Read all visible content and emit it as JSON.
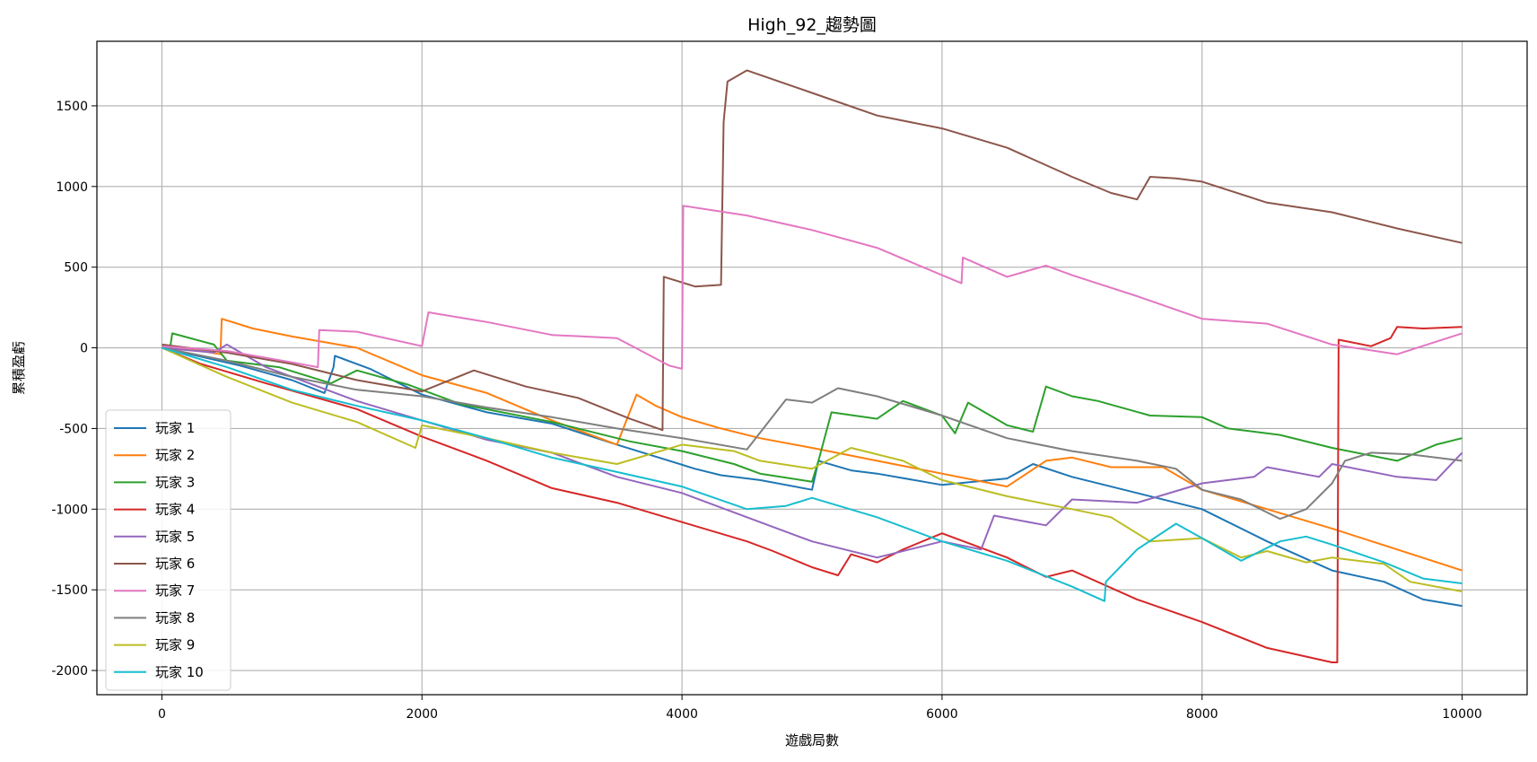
{
  "chart_data": {
    "type": "line",
    "title": "High_92_趨勢圖",
    "xlabel": "遊戲局數",
    "ylabel": "累積盈虧",
    "xlim": [
      -500,
      10500
    ],
    "ylim": [
      -2150,
      1900
    ],
    "xticks": [
      0,
      2000,
      4000,
      6000,
      8000,
      10000
    ],
    "yticks": [
      -2000,
      -1500,
      -1000,
      -500,
      0,
      500,
      1000,
      1500
    ],
    "grid": true,
    "legend_position": "lower-left",
    "series": [
      {
        "name": "玩家 1",
        "color": "#1f77b4",
        "points": [
          [
            0,
            0
          ],
          [
            600,
            -110
          ],
          [
            1000,
            -200
          ],
          [
            1250,
            -280
          ],
          [
            1320,
            -120
          ],
          [
            1330,
            -50
          ],
          [
            1600,
            -130
          ],
          [
            2000,
            -290
          ],
          [
            2500,
            -400
          ],
          [
            3000,
            -470
          ],
          [
            3500,
            -600
          ],
          [
            4100,
            -750
          ],
          [
            4300,
            -790
          ],
          [
            4600,
            -820
          ],
          [
            5000,
            -880
          ],
          [
            5050,
            -700
          ],
          [
            5300,
            -760
          ],
          [
            5500,
            -780
          ],
          [
            6000,
            -850
          ],
          [
            6500,
            -810
          ],
          [
            6700,
            -720
          ],
          [
            7000,
            -800
          ],
          [
            7500,
            -900
          ],
          [
            8000,
            -1000
          ],
          [
            8500,
            -1200
          ],
          [
            9000,
            -1380
          ],
          [
            9400,
            -1450
          ],
          [
            9700,
            -1560
          ],
          [
            10000,
            -1600
          ]
        ]
      },
      {
        "name": "玩家 2",
        "color": "#ff7f0e",
        "points": [
          [
            0,
            20
          ],
          [
            450,
            -40
          ],
          [
            460,
            180
          ],
          [
            700,
            120
          ],
          [
            1000,
            70
          ],
          [
            1500,
            0
          ],
          [
            2000,
            -170
          ],
          [
            2500,
            -280
          ],
          [
            3000,
            -450
          ],
          [
            3500,
            -600
          ],
          [
            3650,
            -290
          ],
          [
            3800,
            -360
          ],
          [
            4000,
            -430
          ],
          [
            4300,
            -500
          ],
          [
            4600,
            -560
          ],
          [
            5000,
            -620
          ],
          [
            5500,
            -700
          ],
          [
            6000,
            -780
          ],
          [
            6500,
            -860
          ],
          [
            6800,
            -700
          ],
          [
            7000,
            -680
          ],
          [
            7300,
            -740
          ],
          [
            7700,
            -740
          ],
          [
            8000,
            -880
          ],
          [
            8500,
            -1000
          ],
          [
            9000,
            -1120
          ],
          [
            9500,
            -1250
          ],
          [
            10000,
            -1380
          ]
        ]
      },
      {
        "name": "玩家 3",
        "color": "#2ca02c",
        "points": [
          [
            0,
            10
          ],
          [
            60,
            -20
          ],
          [
            80,
            90
          ],
          [
            400,
            20
          ],
          [
            500,
            -80
          ],
          [
            900,
            -120
          ],
          [
            1300,
            -220
          ],
          [
            1500,
            -140
          ],
          [
            1900,
            -230
          ],
          [
            2300,
            -350
          ],
          [
            3000,
            -460
          ],
          [
            3600,
            -580
          ],
          [
            4000,
            -640
          ],
          [
            4400,
            -720
          ],
          [
            4600,
            -780
          ],
          [
            5000,
            -830
          ],
          [
            5050,
            -700
          ],
          [
            5150,
            -400
          ],
          [
            5500,
            -440
          ],
          [
            5700,
            -330
          ],
          [
            6000,
            -420
          ],
          [
            6100,
            -530
          ],
          [
            6200,
            -340
          ],
          [
            6500,
            -480
          ],
          [
            6700,
            -520
          ],
          [
            6800,
            -240
          ],
          [
            7000,
            -300
          ],
          [
            7200,
            -330
          ],
          [
            7600,
            -420
          ],
          [
            8000,
            -430
          ],
          [
            8200,
            -500
          ],
          [
            8600,
            -540
          ],
          [
            9000,
            -620
          ],
          [
            9500,
            -700
          ],
          [
            9800,
            -600
          ],
          [
            10000,
            -560
          ]
        ]
      },
      {
        "name": "玩家 4",
        "color": "#d62728",
        "points": [
          [
            0,
            0
          ],
          [
            300,
            -100
          ],
          [
            800,
            -220
          ],
          [
            1500,
            -380
          ],
          [
            2000,
            -550
          ],
          [
            2500,
            -700
          ],
          [
            3000,
            -870
          ],
          [
            3500,
            -960
          ],
          [
            4000,
            -1080
          ],
          [
            4500,
            -1200
          ],
          [
            4700,
            -1260
          ],
          [
            5000,
            -1360
          ],
          [
            5200,
            -1410
          ],
          [
            5300,
            -1280
          ],
          [
            5500,
            -1330
          ],
          [
            5700,
            -1250
          ],
          [
            6000,
            -1150
          ],
          [
            6500,
            -1300
          ],
          [
            6800,
            -1420
          ],
          [
            7000,
            -1380
          ],
          [
            7500,
            -1560
          ],
          [
            8000,
            -1700
          ],
          [
            8500,
            -1860
          ],
          [
            9000,
            -1950
          ],
          [
            9040,
            -1950
          ],
          [
            9050,
            50
          ],
          [
            9300,
            10
          ],
          [
            9450,
            60
          ],
          [
            9500,
            130
          ],
          [
            9700,
            120
          ],
          [
            10000,
            130
          ]
        ]
      },
      {
        "name": "玩家 5",
        "color": "#9467bd",
        "points": [
          [
            0,
            0
          ],
          [
            400,
            -30
          ],
          [
            500,
            20
          ],
          [
            800,
            -120
          ],
          [
            1500,
            -330
          ],
          [
            2000,
            -450
          ],
          [
            2500,
            -570
          ],
          [
            3000,
            -650
          ],
          [
            3500,
            -800
          ],
          [
            4000,
            -900
          ],
          [
            4500,
            -1050
          ],
          [
            5000,
            -1200
          ],
          [
            5500,
            -1300
          ],
          [
            6000,
            -1200
          ],
          [
            6300,
            -1250
          ],
          [
            6400,
            -1040
          ],
          [
            6800,
            -1100
          ],
          [
            7000,
            -940
          ],
          [
            7500,
            -960
          ],
          [
            8000,
            -840
          ],
          [
            8400,
            -800
          ],
          [
            8500,
            -740
          ],
          [
            8900,
            -800
          ],
          [
            9000,
            -720
          ],
          [
            9500,
            -800
          ],
          [
            9800,
            -820
          ],
          [
            10000,
            -650
          ]
        ]
      },
      {
        "name": "玩家 6",
        "color": "#8c564b",
        "points": [
          [
            0,
            20
          ],
          [
            500,
            -30
          ],
          [
            1000,
            -100
          ],
          [
            1500,
            -200
          ],
          [
            2000,
            -270
          ],
          [
            2400,
            -140
          ],
          [
            2800,
            -240
          ],
          [
            3200,
            -310
          ],
          [
            3600,
            -440
          ],
          [
            3850,
            -510
          ],
          [
            3860,
            440
          ],
          [
            4100,
            380
          ],
          [
            4300,
            390
          ],
          [
            4320,
            1400
          ],
          [
            4350,
            1650
          ],
          [
            4500,
            1720
          ],
          [
            5000,
            1580
          ],
          [
            5500,
            1440
          ],
          [
            6000,
            1360
          ],
          [
            6500,
            1240
          ],
          [
            7000,
            1060
          ],
          [
            7300,
            960
          ],
          [
            7500,
            920
          ],
          [
            7600,
            1060
          ],
          [
            7800,
            1050
          ],
          [
            8000,
            1030
          ],
          [
            8500,
            900
          ],
          [
            9000,
            840
          ],
          [
            9500,
            740
          ],
          [
            10000,
            650
          ]
        ]
      },
      {
        "name": "玩家 7",
        "color": "#e377c2",
        "points": [
          [
            0,
            10
          ],
          [
            500,
            -20
          ],
          [
            1000,
            -90
          ],
          [
            1200,
            -120
          ],
          [
            1210,
            110
          ],
          [
            1500,
            100
          ],
          [
            2000,
            10
          ],
          [
            2050,
            220
          ],
          [
            2500,
            160
          ],
          [
            3000,
            80
          ],
          [
            3500,
            60
          ],
          [
            3900,
            -110
          ],
          [
            4000,
            -130
          ],
          [
            4010,
            880
          ],
          [
            4500,
            820
          ],
          [
            5000,
            730
          ],
          [
            5500,
            620
          ],
          [
            6000,
            450
          ],
          [
            6150,
            400
          ],
          [
            6160,
            560
          ],
          [
            6500,
            440
          ],
          [
            6800,
            510
          ],
          [
            7000,
            450
          ],
          [
            7500,
            320
          ],
          [
            8000,
            180
          ],
          [
            8500,
            150
          ],
          [
            9000,
            20
          ],
          [
            9500,
            -40
          ],
          [
            10000,
            90
          ]
        ]
      },
      {
        "name": "玩家 8",
        "color": "#7f7f7f",
        "points": [
          [
            0,
            0
          ],
          [
            500,
            -80
          ],
          [
            1000,
            -180
          ],
          [
            1500,
            -260
          ],
          [
            2000,
            -300
          ],
          [
            2500,
            -370
          ],
          [
            3000,
            -430
          ],
          [
            3500,
            -500
          ],
          [
            4000,
            -560
          ],
          [
            4500,
            -630
          ],
          [
            4800,
            -320
          ],
          [
            5000,
            -340
          ],
          [
            5200,
            -250
          ],
          [
            5500,
            -300
          ],
          [
            6000,
            -420
          ],
          [
            6500,
            -560
          ],
          [
            7000,
            -640
          ],
          [
            7500,
            -700
          ],
          [
            7800,
            -750
          ],
          [
            8000,
            -880
          ],
          [
            8300,
            -940
          ],
          [
            8600,
            -1060
          ],
          [
            8800,
            -1000
          ],
          [
            9000,
            -840
          ],
          [
            9100,
            -700
          ],
          [
            9300,
            -650
          ],
          [
            9600,
            -660
          ],
          [
            10000,
            -700
          ]
        ]
      },
      {
        "name": "玩家 9",
        "color": "#bcbd22",
        "points": [
          [
            0,
            0
          ],
          [
            500,
            -180
          ],
          [
            1000,
            -340
          ],
          [
            1500,
            -460
          ],
          [
            1950,
            -620
          ],
          [
            2000,
            -480
          ],
          [
            2500,
            -560
          ],
          [
            3000,
            -650
          ],
          [
            3500,
            -720
          ],
          [
            4000,
            -600
          ],
          [
            4400,
            -640
          ],
          [
            4600,
            -700
          ],
          [
            5000,
            -750
          ],
          [
            5300,
            -620
          ],
          [
            5700,
            -700
          ],
          [
            6000,
            -820
          ],
          [
            6500,
            -920
          ],
          [
            7000,
            -1000
          ],
          [
            7300,
            -1050
          ],
          [
            7600,
            -1200
          ],
          [
            8000,
            -1180
          ],
          [
            8300,
            -1300
          ],
          [
            8500,
            -1260
          ],
          [
            8800,
            -1330
          ],
          [
            9000,
            -1300
          ],
          [
            9400,
            -1340
          ],
          [
            9600,
            -1450
          ],
          [
            10000,
            -1510
          ]
        ]
      },
      {
        "name": "玩家 10",
        "color": "#17becf",
        "points": [
          [
            0,
            0
          ],
          [
            500,
            -120
          ],
          [
            1000,
            -260
          ],
          [
            1500,
            -360
          ],
          [
            2000,
            -450
          ],
          [
            2500,
            -560
          ],
          [
            3000,
            -680
          ],
          [
            3500,
            -770
          ],
          [
            4000,
            -860
          ],
          [
            4500,
            -1000
          ],
          [
            4800,
            -980
          ],
          [
            5000,
            -930
          ],
          [
            5500,
            -1050
          ],
          [
            6000,
            -1200
          ],
          [
            6500,
            -1320
          ],
          [
            7000,
            -1480
          ],
          [
            7250,
            -1570
          ],
          [
            7260,
            -1450
          ],
          [
            7500,
            -1250
          ],
          [
            7800,
            -1090
          ],
          [
            8000,
            -1180
          ],
          [
            8300,
            -1320
          ],
          [
            8600,
            -1200
          ],
          [
            8800,
            -1170
          ],
          [
            9000,
            -1220
          ],
          [
            9400,
            -1330
          ],
          [
            9700,
            -1430
          ],
          [
            10000,
            -1460
          ]
        ]
      }
    ]
  }
}
